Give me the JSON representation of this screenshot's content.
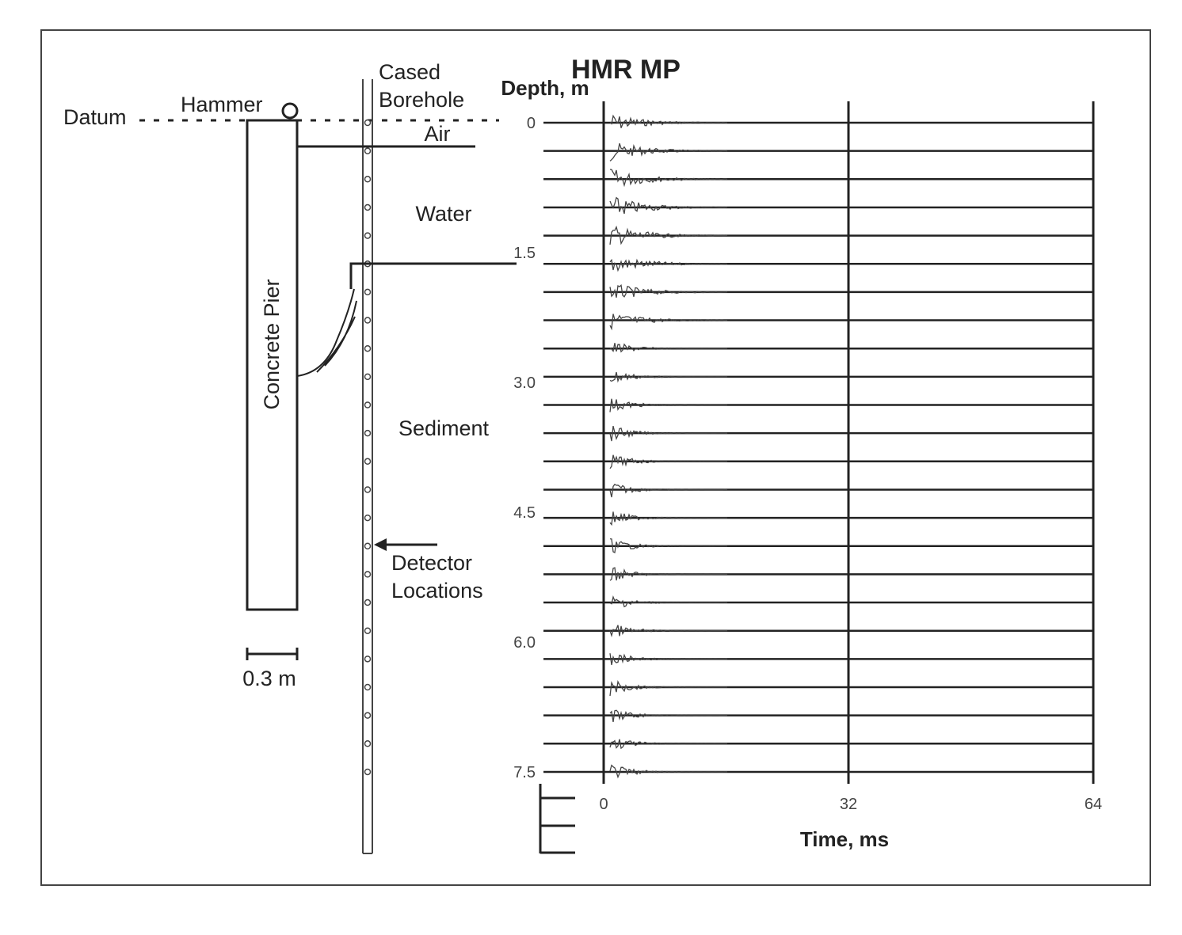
{
  "title": "HMR MP",
  "labels": {
    "datum": "Datum",
    "hammer": "Hammer",
    "cased": "Cased",
    "borehole": "Borehole",
    "air": "Air",
    "water": "Water",
    "sediment": "Sediment",
    "pier": "Concrete Pier",
    "detector_1": "Detector",
    "detector_2": "Locations",
    "scale": "0.3 m"
  },
  "depth_axis": {
    "label": "Depth, m",
    "lim": [
      0,
      7.5
    ],
    "ticks": [
      0,
      {
        "value": 1.5,
        "label": "1.5"
      },
      {
        "value": 3,
        "label": "3.0"
      },
      {
        "value": 4.5,
        "label": "4.5"
      },
      {
        "value": 6,
        "label": "6.0"
      },
      {
        "value": 7.5,
        "label": "7.5"
      }
    ]
  },
  "time_axis": {
    "label": "Time, ms",
    "lim": [
      0,
      64
    ],
    "ticks": [
      0,
      32,
      64
    ]
  }
}
